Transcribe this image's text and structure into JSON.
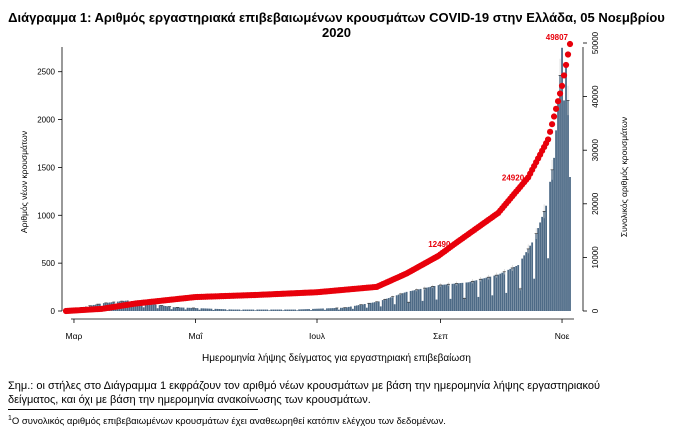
{
  "header": {
    "title": "Διάγραμμα 1: Αριθμός εργαστηριακά επιβεβαιωμένων κρουσμάτων COVID-19 στην Ελλάδα, 05 Νοεμβρίου 2020"
  },
  "chart_data": {
    "type": "bar",
    "title": "Διάγραμμα 1: Αριθμός εργαστηριακά επιβεβαιωμένων κρουσμάτων COVID-19 στην Ελλάδα, 05 Νοεμβρίου 2020",
    "xlabel": "Ημερομηνία λήψης δείγματος για εργαστηριακή επιβεβαίωση",
    "ylabel": "Αριθμός νέων κρουσμάτων",
    "y2label": "Συνολικός αριθμός κρουσμάτων",
    "x_range": [
      "2020-02-26",
      "2020-11-05"
    ],
    "x_ticks": [
      {
        "label": "Μαρ",
        "date": "2020-03-01"
      },
      {
        "label": "Μαΐ",
        "date": "2020-05-01"
      },
      {
        "label": "Ιουλ",
        "date": "2020-07-01"
      },
      {
        "label": "Σεπ",
        "date": "2020-09-01"
      },
      {
        "label": "Νοε",
        "date": "2020-11-01"
      }
    ],
    "ylim": [
      0,
      2800
    ],
    "y_ticks": [
      0,
      500,
      1000,
      1500,
      2000,
      2500
    ],
    "y2lim": [
      0,
      50000
    ],
    "y2_ticks": [
      0,
      10000,
      20000,
      30000,
      40000,
      50000
    ],
    "bar_color": "#4d6a86",
    "line_color": "#e8000b",
    "bar_key_points": [
      {
        "date": "2020-02-26",
        "value": 5
      },
      {
        "date": "2020-03-15",
        "value": 80
      },
      {
        "date": "2020-03-28",
        "value": 110
      },
      {
        "date": "2020-04-20",
        "value": 40
      },
      {
        "date": "2020-05-20",
        "value": 15
      },
      {
        "date": "2020-06-20",
        "value": 15
      },
      {
        "date": "2020-07-15",
        "value": 35
      },
      {
        "date": "2020-08-01",
        "value": 100
      },
      {
        "date": "2020-08-15",
        "value": 200
      },
      {
        "date": "2020-08-31",
        "value": 270
      },
      {
        "date": "2020-09-15",
        "value": 300
      },
      {
        "date": "2020-09-30",
        "value": 380
      },
      {
        "date": "2020-10-10",
        "value": 480
      },
      {
        "date": "2020-10-18",
        "value": 750
      },
      {
        "date": "2020-10-24",
        "value": 1100
      },
      {
        "date": "2020-10-28",
        "value": 1600
      },
      {
        "date": "2020-11-01",
        "value": 2750
      },
      {
        "date": "2020-11-02",
        "value": 2200
      },
      {
        "date": "2020-11-03",
        "value": 2550
      },
      {
        "date": "2020-11-04",
        "value": 2200
      },
      {
        "date": "2020-11-05",
        "value": 1400
      }
    ],
    "cumulative_key_points": [
      {
        "date": "2020-02-26",
        "value": 0
      },
      {
        "date": "2020-03-15",
        "value": 400
      },
      {
        "date": "2020-04-01",
        "value": 1400
      },
      {
        "date": "2020-05-01",
        "value": 2600
      },
      {
        "date": "2020-06-01",
        "value": 3000
      },
      {
        "date": "2020-07-01",
        "value": 3500
      },
      {
        "date": "2020-07-31",
        "value": 4500
      },
      {
        "date": "2020-08-15",
        "value": 7000
      },
      {
        "date": "2020-08-31",
        "value": 10300
      },
      {
        "date": "2020-09-08",
        "value": 12490
      },
      {
        "date": "2020-09-30",
        "value": 18300
      },
      {
        "date": "2020-10-15",
        "value": 24920
      },
      {
        "date": "2020-10-25",
        "value": 32000
      },
      {
        "date": "2020-11-01",
        "value": 42000
      },
      {
        "date": "2020-11-05",
        "value": 49807
      }
    ],
    "annotations": [
      {
        "text": "12490",
        "date": "2020-09-08",
        "value": 12490
      },
      {
        "text": "24920",
        "date": "2020-10-15",
        "value": 24920
      },
      {
        "text": "49807",
        "date": "2020-11-05",
        "value": 49807
      }
    ]
  },
  "note": "Σημ.: οι στήλες στο Διάγραμμα 1 εκφράζουν τον αριθμό νέων κρουσμάτων με βάση την ημερομηνία λήψης εργαστηριακού δείγματος, και όχι με βάση την ημερομηνία ανακοίνωσης των κρουσμάτων.",
  "footnote": {
    "marker": "1",
    "text": "Ο συνολικός αριθμός επιβεβαιωμένων κρουσμάτων έχει αναθεωρηθεί κατόπιν ελέγχου των δεδομένων."
  }
}
